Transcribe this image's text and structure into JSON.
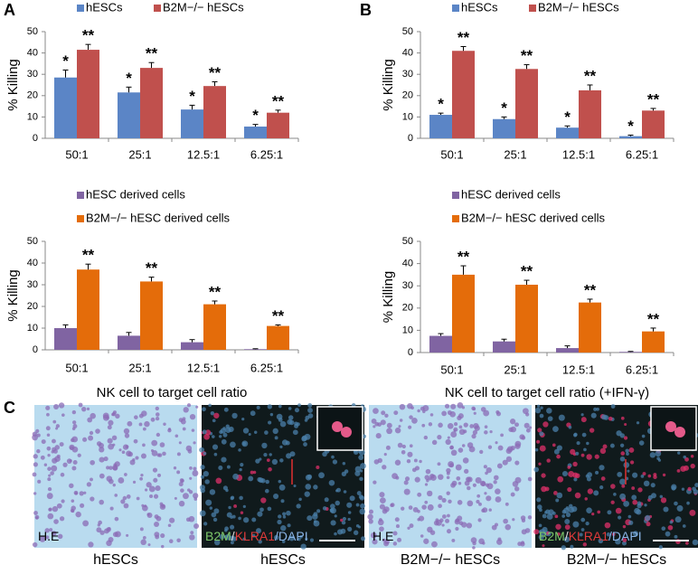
{
  "panels": [
    "A",
    "B",
    "C"
  ],
  "chart_data": [
    {
      "type": "bar",
      "ylabel": "% Killing",
      "categories": [
        "50:1",
        "25:1",
        "12.5:1",
        "6.25:1"
      ],
      "ylim": [
        0,
        50
      ],
      "yticks": [
        0,
        10,
        20,
        30,
        40,
        50
      ],
      "series": [
        {
          "name": "hESCs",
          "color": "#5b85c6",
          "values": [
            28.5,
            21.5,
            13.5,
            5.5
          ],
          "errors": [
            3.5,
            2.5,
            2,
            1
          ],
          "stars": [
            "*",
            "*",
            "*",
            "*"
          ]
        },
        {
          "name": "B2M−/− hESCs",
          "color": "#c0504d",
          "values": [
            41.5,
            33,
            24.5,
            12
          ],
          "errors": [
            2.5,
            2.5,
            2,
            1.2
          ],
          "stars": [
            "**",
            "**",
            "**",
            "**"
          ]
        }
      ]
    },
    {
      "type": "bar",
      "ylabel": "% Killing",
      "categories": [
        "50:1",
        "25:1",
        "12.5:1",
        "6.25:1"
      ],
      "ylim": [
        0,
        50
      ],
      "yticks": [
        0,
        10,
        20,
        30,
        40,
        50
      ],
      "series": [
        {
          "name": "hESCs",
          "color": "#5b85c6",
          "values": [
            11,
            9,
            5,
            1
          ],
          "errors": [
            0.8,
            1,
            0.8,
            0.5
          ],
          "stars": [
            "*",
            "*",
            "*",
            "*"
          ]
        },
        {
          "name": "B2M−/− hESCs",
          "color": "#c0504d",
          "values": [
            41,
            32.5,
            22.5,
            13
          ],
          "errors": [
            2,
            2,
            2.5,
            1
          ],
          "stars": [
            "**",
            "**",
            "**",
            "**"
          ]
        }
      ]
    },
    {
      "type": "bar",
      "ylabel": "% Killing",
      "xlabel": "NK cell to target cell ratio",
      "categories": [
        "50:1",
        "25:1",
        "12.5:1",
        "6.25:1"
      ],
      "ylim": [
        0,
        50
      ],
      "yticks": [
        0,
        10,
        20,
        30,
        40,
        50
      ],
      "series": [
        {
          "name": "hESC derived cells",
          "color": "#8064a2",
          "values": [
            10,
            6.5,
            3.5,
            0.3
          ],
          "errors": [
            1.5,
            1.5,
            1.2,
            0.2
          ],
          "stars": [
            null,
            null,
            null,
            null
          ]
        },
        {
          "name": "B2M−/− hESC derived cells",
          "color": "#e46c0a",
          "values": [
            37,
            31.5,
            21,
            11
          ],
          "errors": [
            2.5,
            2,
            1.5,
            0.5
          ],
          "stars": [
            "**",
            "**",
            "**",
            "**"
          ]
        }
      ]
    },
    {
      "type": "bar",
      "ylabel": "% Killing",
      "xlabel": "NK cell to target cell ratio (+IFN-γ)",
      "categories": [
        "50:1",
        "25:1",
        "12.5:1",
        "6.25:1"
      ],
      "ylim": [
        0,
        50
      ],
      "yticks": [
        0,
        10,
        20,
        30,
        40,
        50
      ],
      "series": [
        {
          "name": "hESC derived cells",
          "color": "#8064a2",
          "values": [
            7.5,
            5,
            2,
            0.3
          ],
          "errors": [
            1,
            1,
            1,
            0.2
          ],
          "stars": [
            null,
            null,
            null,
            null
          ]
        },
        {
          "name": "B2M−/− hESC derived cells",
          "color": "#e46c0a",
          "values": [
            35,
            30.5,
            22.5,
            9.5
          ],
          "errors": [
            4,
            2,
            1.5,
            1.5
          ],
          "stars": [
            "**",
            "**",
            "**",
            "**"
          ]
        }
      ]
    }
  ],
  "images": [
    {
      "caption": "hESCs",
      "stain": [
        "H.E"
      ]
    },
    {
      "caption": "hESCs",
      "stain": [
        "B2M",
        "/",
        "KLRA1",
        "/DAPI"
      ]
    },
    {
      "caption": "B2M−/− hESCs",
      "stain": [
        "H.E"
      ]
    },
    {
      "caption": "B2M−/− hESCs",
      "stain": [
        "B2M",
        "/",
        "KLRA1",
        "/DAPI"
      ]
    }
  ]
}
